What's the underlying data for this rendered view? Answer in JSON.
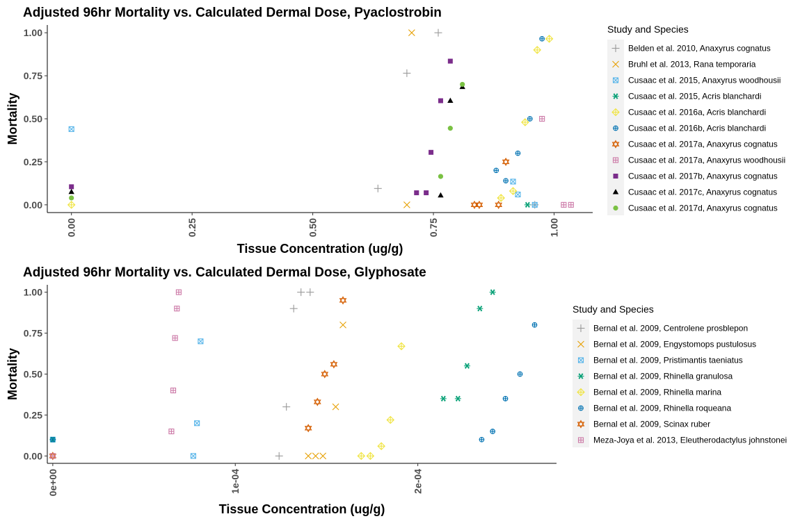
{
  "chart_data": [
    {
      "type": "scatter",
      "title": "Adjusted 96hr Mortality vs. Calculated Dermal Dose, Pyaclostrobin",
      "xlabel": "Tissue Concentration (ug/g)",
      "ylabel": "Mortality",
      "xlim": [
        -0.05,
        1.08
      ],
      "ylim": [
        -0.045,
        1.045
      ],
      "xticks": [
        0,
        0.25,
        0.5,
        0.75,
        1.0
      ],
      "xtick_labels": [
        "0.00",
        "0.25",
        "0.50",
        "0.75",
        "1.00"
      ],
      "yticks": [
        0,
        0.25,
        0.5,
        0.75,
        1.0
      ],
      "ytick_labels": [
        "0.00",
        "0.25",
        "0.50",
        "0.75",
        "1.00"
      ],
      "legend_title": "Study and Species",
      "legend_position": "right",
      "grid": false,
      "series": [
        {
          "name": "Belden et al. 2010, Anaxyrus cognatus",
          "shape": "plus",
          "color": "#999999",
          "x": [
            0.76,
            0.695,
            0.635,
            0.96
          ],
          "y": [
            1.0,
            0.765,
            0.095,
            0.0
          ]
        },
        {
          "name": "Bruhl et al. 2013, Rana temporaria",
          "shape": "cross",
          "color": "#E69F00",
          "x": [
            0.705,
            0.695
          ],
          "y": [
            1.0,
            0.0
          ]
        },
        {
          "name": "Cusaac et al. 2015, Anaxyrus woodhousii",
          "shape": "squarecross",
          "color": "#56B4E9",
          "x": [
            0.0,
            0.915,
            0.925,
            0.96
          ],
          "y": [
            0.44,
            0.135,
            0.06,
            0.0
          ]
        },
        {
          "name": "Cusaac et al. 2015, Acris blanchardi",
          "shape": "asterisk",
          "color": "#009E73",
          "x": [
            0.945
          ],
          "y": [
            0.0
          ]
        },
        {
          "name": "Cusaac et al. 2016a, Acris blanchardi",
          "shape": "diamondplus",
          "color": "#F0E442",
          "x": [
            0.99,
            0.965,
            0.94,
            0.915,
            0.89,
            0.0
          ],
          "y": [
            0.965,
            0.9,
            0.48,
            0.08,
            0.04,
            0.0
          ]
        },
        {
          "name": "Cusaac et al. 2016b, Acris blanchardi",
          "shape": "circleplus",
          "color": "#0072B2",
          "x": [
            0.975,
            0.95,
            0.925,
            0.9,
            0.88
          ],
          "y": [
            0.965,
            0.5,
            0.3,
            0.14,
            0.2
          ]
        },
        {
          "name": "Cusaac et al. 2017a, Anaxyrus cognatus",
          "shape": "star",
          "color": "#D55E00",
          "x": [
            0.9,
            0.835,
            0.845,
            0.885
          ],
          "y": [
            0.25,
            0.0,
            0.0,
            0.0
          ]
        },
        {
          "name": "Cusaac et al. 2017a, Anaxyrus woodhousii",
          "shape": "squareplus",
          "color": "#CC79A7",
          "x": [
            0.975,
            1.02,
            1.035
          ],
          "y": [
            0.5,
            0.0,
            0.0
          ]
        },
        {
          "name": "Cusaac et al. 2017b, Anaxyrus cognatus",
          "shape": "square",
          "color": "#7B2D8B",
          "x": [
            0.0,
            0.785,
            0.765,
            0.745,
            0.715,
            0.735
          ],
          "y": [
            0.105,
            0.835,
            0.605,
            0.305,
            0.07,
            0.07
          ]
        },
        {
          "name": "Cusaac et al. 2017c, Anaxyrus cognatus",
          "shape": "triangle",
          "color": "#000000",
          "x": [
            0.0,
            0.81,
            0.785,
            0.765
          ],
          "y": [
            0.075,
            0.685,
            0.605,
            0.055
          ]
        },
        {
          "name": "Cusaac et al. 2017d, Anaxyrus cognatus",
          "shape": "circle",
          "color": "#7AC143",
          "x": [
            0.0,
            0.81,
            0.785,
            0.765
          ],
          "y": [
            0.04,
            0.7,
            0.445,
            0.165
          ]
        }
      ]
    },
    {
      "type": "scatter",
      "title": "Adjusted 96hr Mortality vs. Calculated Dermal Dose, Glyphosate",
      "xlabel": "Tissue Concentration (ug/g)",
      "ylabel": "Mortality",
      "xlim": [
        -3e-06,
        0.000276
      ],
      "ylim": [
        -0.045,
        1.045
      ],
      "xticks": [
        0,
        0.0001,
        0.0002
      ],
      "xtick_labels": [
        "0e+00",
        "1e-04",
        "2e-04"
      ],
      "yticks": [
        0,
        0.25,
        0.5,
        0.75,
        1.0
      ],
      "ytick_labels": [
        "0.00",
        "0.25",
        "0.50",
        "0.75",
        "1.00"
      ],
      "legend_title": "Study and Species",
      "legend_position": "right",
      "grid": false,
      "series": [
        {
          "name": "Bernal et al. 2009, Centrolene prosblepon",
          "shape": "plus",
          "color": "#999999",
          "x": [
            0.000136,
            0.000141,
            0.000132,
            0.000128,
            0.000124
          ],
          "y": [
            1.0,
            1.0,
            0.9,
            0.3,
            0.0
          ]
        },
        {
          "name": "Bernal et al. 2009, Engystomops pustulosus",
          "shape": "cross",
          "color": "#E69F00",
          "x": [
            0.000159,
            0.000155,
            0.00014,
            0.000144,
            0.000148
          ],
          "y": [
            0.8,
            0.3,
            0.0,
            0.0,
            0.0
          ]
        },
        {
          "name": "Bernal et al. 2009, Pristimantis taeniatus",
          "shape": "squarecross",
          "color": "#56B4E9",
          "x": [
            8.1e-05,
            7.9e-05,
            7.7e-05,
            0.0
          ],
          "y": [
            0.7,
            0.2,
            0.0,
            0.1
          ]
        },
        {
          "name": "Bernal et al. 2009, Rhinella granulosa",
          "shape": "asterisk",
          "color": "#009E73",
          "x": [
            0.000241,
            0.000234,
            0.000227,
            0.000222,
            0.000214,
            0.0
          ],
          "y": [
            1.0,
            0.9,
            0.55,
            0.35,
            0.35,
            0.1
          ]
        },
        {
          "name": "Bernal et al. 2009, Rhinella marina",
          "shape": "diamondplus",
          "color": "#F0E442",
          "x": [
            0.000191,
            0.000185,
            0.00018,
            0.000174,
            0.000169
          ],
          "y": [
            0.67,
            0.22,
            0.06,
            0.0,
            0.0
          ]
        },
        {
          "name": "Bernal et al. 2009, Rhinella roqueana",
          "shape": "circleplus",
          "color": "#0072B2",
          "x": [
            0.000264,
            0.000256,
            0.000248,
            0.000241,
            0.000235,
            0.0
          ],
          "y": [
            0.8,
            0.5,
            0.35,
            0.15,
            0.1,
            0.1
          ]
        },
        {
          "name": "Bernal et al. 2009, Scinax ruber",
          "shape": "star",
          "color": "#D55E00",
          "x": [
            0.000159,
            0.000154,
            0.000149,
            0.000145,
            0.00014,
            0.0
          ],
          "y": [
            0.95,
            0.56,
            0.5,
            0.33,
            0.17,
            0.0
          ]
        },
        {
          "name": "Meza-Joya et al. 2013, Eleutherodactylus johnstonei",
          "shape": "squareplus",
          "color": "#CC79A7",
          "x": [
            6.9e-05,
            6.8e-05,
            6.7e-05,
            6.6e-05,
            6.5e-05,
            0.0
          ],
          "y": [
            1.0,
            0.9,
            0.72,
            0.4,
            0.15,
            0.0
          ]
        }
      ]
    }
  ]
}
